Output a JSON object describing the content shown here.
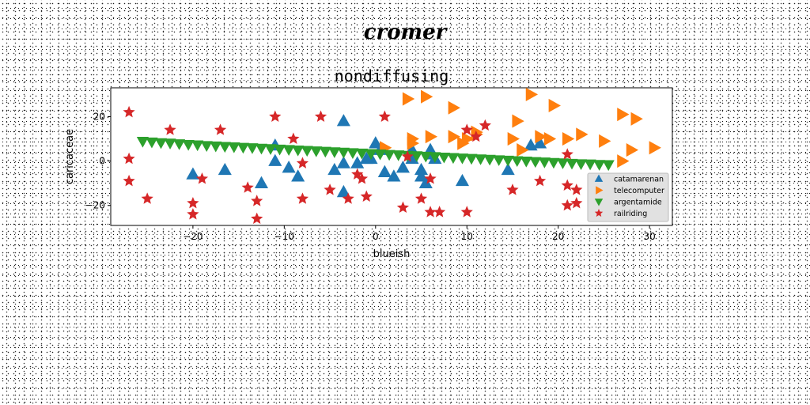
{
  "suptitle": "cromer",
  "chart_data": {
    "type": "scatter",
    "title": "nondiffusing",
    "xlabel": "blueish",
    "ylabel": "caricaceae",
    "xlim": [
      -29,
      32.5
    ],
    "ylim": [
      -29,
      33
    ],
    "xticks": [
      -20,
      -10,
      0,
      10,
      20,
      30
    ],
    "yticks": [
      -20,
      0,
      20
    ],
    "xtick_labels": [
      "−20",
      "−10",
      "0",
      "10",
      "20",
      "30"
    ],
    "ytick_labels": [
      "−20",
      "0",
      "20"
    ],
    "grid": false,
    "legend_position": "lower-right",
    "series": [
      {
        "name": "catamarenan",
        "marker": "triangle-up",
        "color": "#1f77b4",
        "points": [
          [
            -20,
            -6
          ],
          [
            -16.5,
            -4
          ],
          [
            -12.5,
            -10
          ],
          [
            -11,
            7
          ],
          [
            -11,
            0
          ],
          [
            -9.5,
            -3
          ],
          [
            -8.5,
            -7
          ],
          [
            -4.5,
            -4
          ],
          [
            -3.5,
            -1
          ],
          [
            -3.5,
            -14
          ],
          [
            -3.5,
            18
          ],
          [
            -2,
            -1
          ],
          [
            -1,
            1
          ],
          [
            -0.5,
            1
          ],
          [
            0,
            8
          ],
          [
            0.5,
            5
          ],
          [
            1,
            -5
          ],
          [
            2,
            -7
          ],
          [
            3,
            -3
          ],
          [
            4,
            1
          ],
          [
            4,
            5
          ],
          [
            5,
            -4
          ],
          [
            5,
            -7
          ],
          [
            5.5,
            -10
          ],
          [
            6,
            5
          ],
          [
            6,
            3
          ],
          [
            6.5,
            1
          ],
          [
            9.5,
            -9
          ],
          [
            14.5,
            -4
          ],
          [
            17,
            7
          ],
          [
            18,
            8
          ]
        ]
      },
      {
        "name": "telecomputer",
        "marker": "triangle-right",
        "color": "#ff7f0e",
        "points": [
          [
            3.5,
            28
          ],
          [
            5.5,
            29
          ],
          [
            4,
            10
          ],
          [
            4,
            8
          ],
          [
            6,
            11
          ],
          [
            8.5,
            24
          ],
          [
            8.5,
            11
          ],
          [
            9.5,
            8
          ],
          [
            10,
            10
          ],
          [
            11,
            12
          ],
          [
            11,
            13
          ],
          [
            15.5,
            18
          ],
          [
            15,
            10
          ],
          [
            16,
            5
          ],
          [
            17,
            30
          ],
          [
            18,
            11
          ],
          [
            19,
            10
          ],
          [
            19.5,
            25
          ],
          [
            21,
            10
          ],
          [
            22.5,
            12
          ],
          [
            25,
            9
          ],
          [
            27,
            21
          ],
          [
            28.5,
            19
          ],
          [
            28,
            5
          ],
          [
            27,
            0
          ],
          [
            30.5,
            6
          ],
          [
            1,
            6
          ]
        ]
      },
      {
        "name": "argentamide",
        "marker": "triangle-down",
        "color": "#2ca02c",
        "points": [
          [
            -25.5,
            8.9
          ],
          [
            -24.5,
            8.6
          ],
          [
            -23.5,
            8.3
          ],
          [
            -22.5,
            8.1
          ],
          [
            -21.5,
            7.8
          ],
          [
            -20.5,
            7.5
          ],
          [
            -19.5,
            7.3
          ],
          [
            -18.5,
            7.0
          ],
          [
            -17.5,
            6.8
          ],
          [
            -16.5,
            6.6
          ],
          [
            -15.5,
            6.4
          ],
          [
            -14.5,
            6.2
          ],
          [
            -13.5,
            6.0
          ],
          [
            -12.5,
            5.8
          ],
          [
            -11.5,
            5.6
          ],
          [
            -10.5,
            5.4
          ],
          [
            -9.5,
            5.2
          ],
          [
            -8.5,
            5.0
          ],
          [
            -7.5,
            4.8
          ],
          [
            -6.5,
            4.6
          ],
          [
            -5.5,
            4.4
          ],
          [
            -4.5,
            4.2
          ],
          [
            -3.5,
            4.0
          ],
          [
            -2.5,
            3.8
          ],
          [
            -1.5,
            3.6
          ],
          [
            -0.5,
            3.4
          ],
          [
            0.5,
            3.2
          ],
          [
            1.5,
            3.0
          ],
          [
            2.5,
            2.8
          ],
          [
            3.5,
            2.6
          ],
          [
            4.5,
            2.4
          ],
          [
            5.5,
            2.2
          ],
          [
            6.5,
            2.0
          ],
          [
            7.5,
            1.8
          ],
          [
            8.5,
            1.6
          ],
          [
            9.5,
            1.4
          ],
          [
            10.5,
            1.2
          ],
          [
            11.5,
            1.0
          ],
          [
            12.5,
            0.8
          ],
          [
            13.5,
            0.6
          ],
          [
            14.5,
            0.4
          ],
          [
            15.5,
            0.2
          ],
          [
            16.5,
            0.0
          ],
          [
            17.5,
            -0.2
          ],
          [
            18.5,
            -0.4
          ],
          [
            19.5,
            -0.6
          ],
          [
            20.5,
            -0.8
          ],
          [
            21.5,
            -1.0
          ],
          [
            22.5,
            -1.2
          ],
          [
            23.5,
            -1.3
          ],
          [
            24.5,
            -1.5
          ],
          [
            25.5,
            -1.6
          ]
        ]
      },
      {
        "name": "railriding",
        "marker": "star",
        "color": "#d62728",
        "points": [
          [
            -27,
            22
          ],
          [
            -27,
            1
          ],
          [
            -27,
            -9
          ],
          [
            -25,
            -17
          ],
          [
            -22.5,
            14
          ],
          [
            -20,
            -19
          ],
          [
            -20,
            -24
          ],
          [
            -19,
            -8
          ],
          [
            -17,
            14
          ],
          [
            -14,
            -12
          ],
          [
            -13,
            -18
          ],
          [
            -13,
            -26
          ],
          [
            -11,
            20
          ],
          [
            -9,
            10
          ],
          [
            -8,
            -1
          ],
          [
            -8,
            -17
          ],
          [
            -6,
            20
          ],
          [
            -5,
            -13
          ],
          [
            -3,
            -17
          ],
          [
            -2,
            -6
          ],
          [
            -1.5,
            -8
          ],
          [
            -1,
            -16
          ],
          [
            1,
            20
          ],
          [
            3,
            -21
          ],
          [
            3.5,
            2
          ],
          [
            5,
            -17
          ],
          [
            6,
            -8
          ],
          [
            6,
            -23
          ],
          [
            7,
            -23
          ],
          [
            10,
            -23
          ],
          [
            10,
            14
          ],
          [
            11,
            11
          ],
          [
            12,
            16
          ],
          [
            15,
            -13
          ],
          [
            18,
            -9
          ],
          [
            21,
            3
          ],
          [
            21,
            -11
          ],
          [
            21,
            -20
          ],
          [
            22,
            -13
          ],
          [
            22,
            -19
          ]
        ]
      }
    ]
  }
}
